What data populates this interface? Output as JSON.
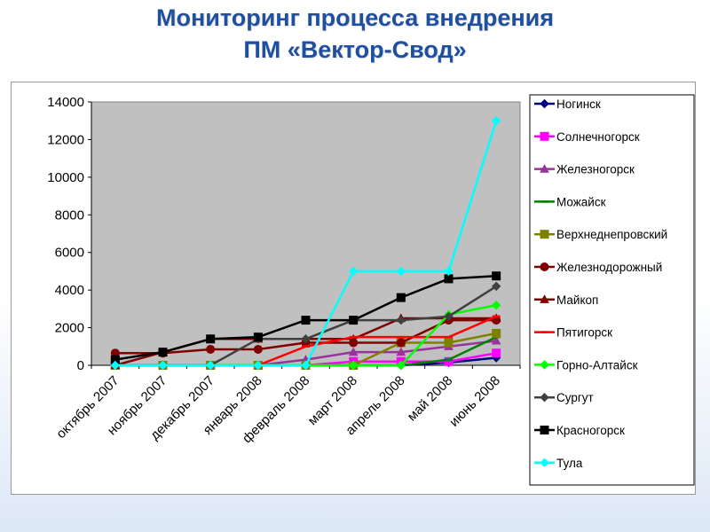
{
  "title_line1": "Мониторинг процесса внедрения",
  "title_line2": "ПМ «Вектор-Свод»",
  "chart_data": {
    "type": "line",
    "categories": [
      "октябрь 2007",
      "ноябрь 2007",
      "декабрь 2007",
      "январь 2008",
      "февраль 2008",
      "март 2008",
      "апрель 2008",
      "май 2008",
      "июнь 2008"
    ],
    "ylim": [
      0,
      14000
    ],
    "yticks": [
      0,
      2000,
      4000,
      6000,
      8000,
      10000,
      12000,
      14000
    ],
    "grid": false,
    "legend_position": "right",
    "plot_background": "#c0c0c0",
    "series": [
      {
        "name": "Ногинск",
        "color": "#000080",
        "marker": "diamond",
        "values": [
          0,
          0,
          0,
          0,
          0,
          0,
          0,
          150,
          400
        ]
      },
      {
        "name": "Солнечногорск",
        "color": "#ff00ff",
        "marker": "square",
        "values": [
          0,
          0,
          0,
          0,
          0,
          200,
          200,
          200,
          650
        ]
      },
      {
        "name": "Железногорск",
        "color": "#993399",
        "marker": "triangle",
        "values": [
          0,
          0,
          0,
          0,
          300,
          700,
          700,
          1000,
          1300
        ]
      },
      {
        "name": "Можайск",
        "color": "#008000",
        "marker": "dash",
        "values": [
          0,
          0,
          0,
          0,
          0,
          0,
          0,
          300,
          1500
        ]
      },
      {
        "name": "Верхнеднепровский",
        "color": "#808000",
        "marker": "square",
        "values": [
          0,
          0,
          0,
          0,
          0,
          0,
          1200,
          1200,
          1700
        ]
      },
      {
        "name": "Железнодорожный",
        "color": "#800000",
        "marker": "circle",
        "values": [
          650,
          650,
          850,
          850,
          1200,
          1200,
          1200,
          2400,
          2400
        ]
      },
      {
        "name": "Майкоп",
        "color": "#800000",
        "marker": "triangle",
        "values": [
          0,
          700,
          1400,
          1400,
          1400,
          1400,
          2500,
          2500,
          2500
        ]
      },
      {
        "name": "Пятигорск",
        "color": "#ff0000",
        "marker": "dash",
        "values": [
          0,
          0,
          0,
          0,
          1000,
          1500,
          1500,
          1500,
          2600
        ]
      },
      {
        "name": "Горно-Алтайск",
        "color": "#00ff00",
        "marker": "diamond",
        "values": [
          0,
          0,
          0,
          0,
          0,
          0,
          0,
          2700,
          3200
        ]
      },
      {
        "name": "Сургут",
        "color": "#404040",
        "marker": "diamond",
        "values": [
          0,
          0,
          0,
          1400,
          1400,
          2400,
          2400,
          2600,
          4200
        ]
      },
      {
        "name": "Красногорск",
        "color": "#000000",
        "marker": "square",
        "values": [
          300,
          700,
          1400,
          1500,
          2400,
          2400,
          3600,
          4600,
          4750
        ]
      },
      {
        "name": "Тула",
        "color": "#00ffff",
        "marker": "diamond",
        "values": [
          0,
          0,
          0,
          0,
          0,
          5000,
          5000,
          5000,
          13000
        ]
      }
    ]
  }
}
